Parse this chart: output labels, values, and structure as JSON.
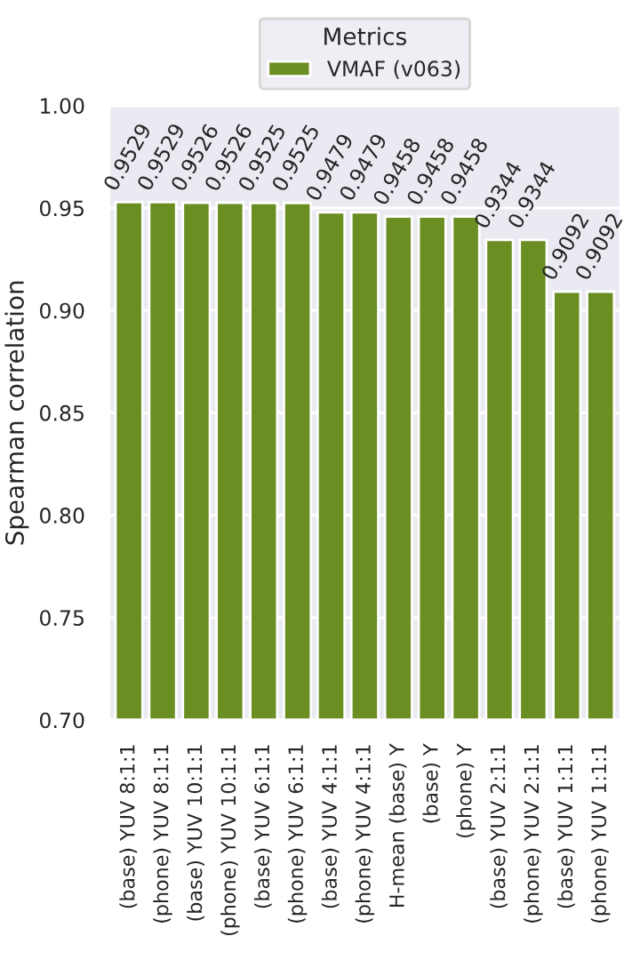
{
  "chart_data": {
    "type": "bar",
    "categories": [
      "(base) YUV 8:1:1",
      "(phone) YUV 8:1:1",
      "(base) YUV 10:1:1",
      "(phone) YUV 10:1:1",
      "(base) YUV 6:1:1",
      "(phone) YUV 6:1:1",
      "(base) YUV 4:1:1",
      "(phone) YUV 4:1:1",
      "H-mean (base) Y",
      "(base) Y",
      "(phone) Y",
      "(base) YUV 2:1:1",
      "(phone) YUV 2:1:1",
      "(base) YUV 1:1:1",
      "(phone) YUV 1:1:1"
    ],
    "series": [
      {
        "name": "VMAF (v063)",
        "color": "#6b8e23",
        "values": [
          0.9529,
          0.9529,
          0.9526,
          0.9526,
          0.9525,
          0.9525,
          0.9479,
          0.9479,
          0.9458,
          0.9458,
          0.9458,
          0.9344,
          0.9344,
          0.9092,
          0.9092
        ]
      }
    ],
    "ylabel": "Spearman correlation",
    "legend_title": "Metrics",
    "legend": "top",
    "ylim": [
      0.7,
      1.0
    ],
    "yticks": [
      {
        "value": 0.7,
        "label": "0.70"
      },
      {
        "value": 0.75,
        "label": "0.75"
      },
      {
        "value": 0.8,
        "label": "0.80"
      },
      {
        "value": 0.85,
        "label": "0.85"
      },
      {
        "value": 0.9,
        "label": "0.90"
      },
      {
        "value": 0.95,
        "label": "0.95"
      },
      {
        "value": 1.0,
        "label": "1.00"
      }
    ],
    "grid": "y",
    "data_labels": true
  }
}
